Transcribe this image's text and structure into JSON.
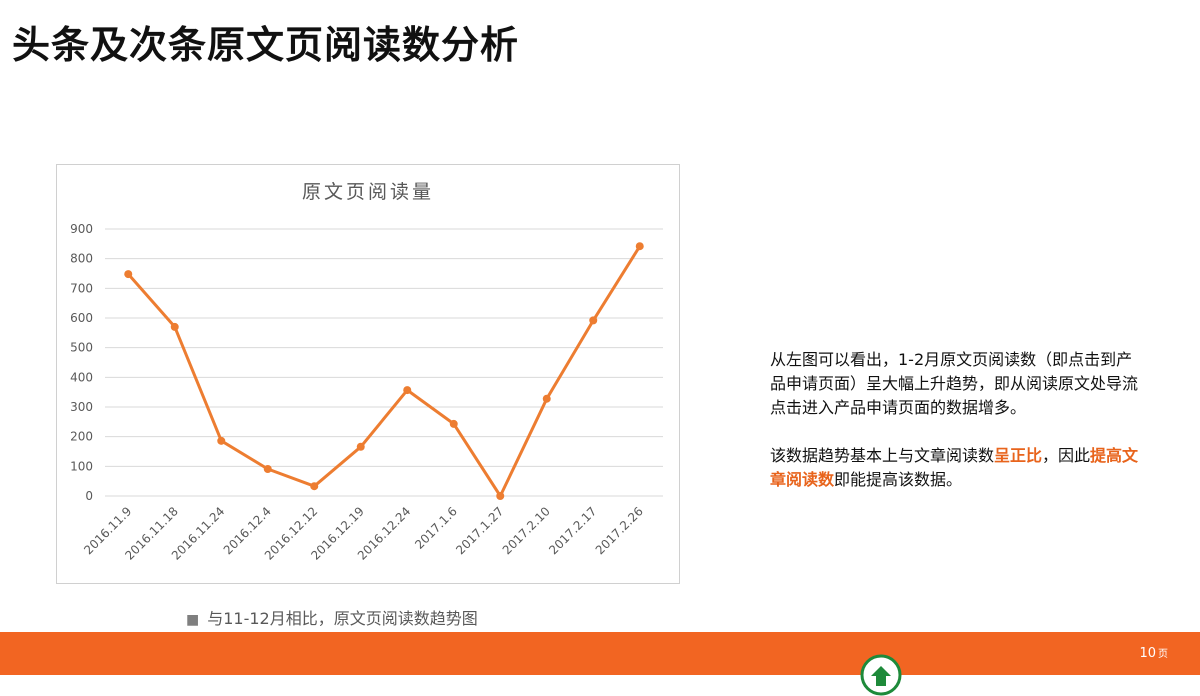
{
  "slide": {
    "title": "头条及次条原文页阅读数分析",
    "caption": "与11-12月相比，原文页阅读数趋势图",
    "caption_bullet": "■",
    "page_number": "10",
    "page_unit": "页"
  },
  "side_text": {
    "paragraph1": "从左图可以看出，1-2月原文页阅读数（即点击到产品申请页面）呈大幅上升趋势，即从阅读原文处导流点击进入产品申请页面的数据增多。",
    "p2_part1": "该数据趋势基本上与文章阅读数",
    "p2_highlight1": "呈正比",
    "p2_part2": "，因此",
    "p2_highlight2": "提高文章阅读数",
    "p2_part3": "即能提高该数据。"
  },
  "colors": {
    "accent": "#f26522",
    "line": "#ed7d31",
    "highlight": "#e8641c"
  },
  "chart_data": {
    "type": "line",
    "title": "原文页阅读量",
    "categories": [
      "2016.11.9",
      "2016.11.18",
      "2016.11.24",
      "2016.12.4",
      "2016.12.12",
      "2016.12.19",
      "2016.12.24",
      "2017.1.6",
      "2017.1.27",
      "2017.2.10",
      "2017.2.17",
      "2017.2.26"
    ],
    "values": [
      748,
      570,
      186,
      91,
      33,
      166,
      357,
      243,
      0,
      328,
      592,
      842
    ],
    "ylim": [
      0,
      900
    ],
    "yticks": [
      0,
      100,
      200,
      300,
      400,
      500,
      600,
      700,
      800,
      900
    ],
    "grid": true,
    "legend": "none"
  }
}
